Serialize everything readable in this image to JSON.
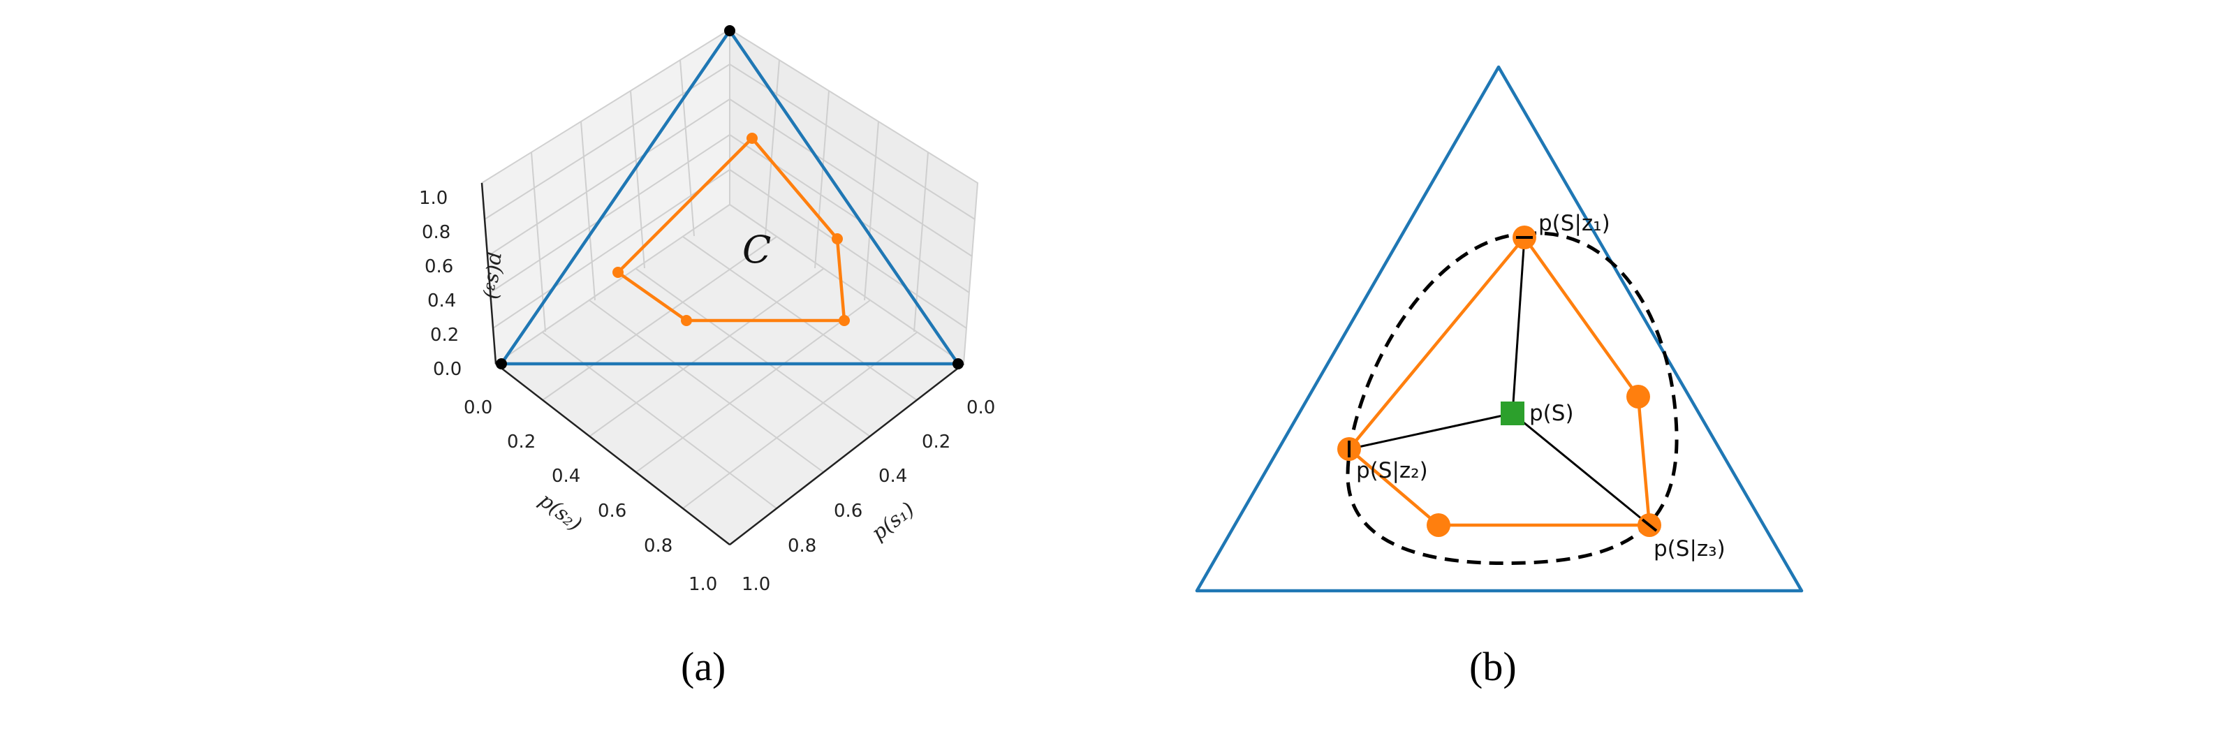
{
  "panel_a": {
    "caption": "(a)",
    "set_label": "C",
    "p3_axis": {
      "label": "p(s₃)",
      "ticks": [
        "1.0",
        "0.8",
        "0.6",
        "0.4",
        "0.2",
        "0.0"
      ]
    },
    "p2_axis": {
      "label": "p(s₂)",
      "ticks": [
        "0.0",
        "0.2",
        "0.4",
        "0.6",
        "0.8",
        "1.0"
      ]
    },
    "p1_axis": {
      "label": "p(s₁)",
      "ticks": [
        "0.0",
        "0.2",
        "0.4",
        "0.6",
        "0.8",
        "1.0"
      ]
    },
    "colors": {
      "simplex": "#1f77b4",
      "polytope": "#ff7f0e",
      "vertex": "#000000",
      "grid": "#cccccc",
      "pane": "#f2f2f2"
    }
  },
  "panel_b": {
    "caption": "(b)",
    "labels": {
      "prior": "p(S)",
      "z1": "p(S|z₁)",
      "z2": "p(S|z₂)",
      "z3": "p(S|z₃)"
    },
    "colors": {
      "simplex": "#1f77b4",
      "polytope": "#ff7f0e",
      "prior": "#2ca02c",
      "connector": "#000000",
      "boundary": "#000000"
    }
  }
}
